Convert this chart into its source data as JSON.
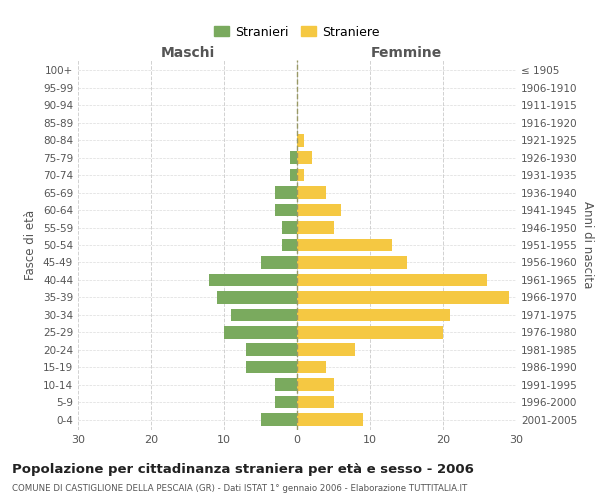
{
  "age_groups": [
    "0-4",
    "5-9",
    "10-14",
    "15-19",
    "20-24",
    "25-29",
    "30-34",
    "35-39",
    "40-44",
    "45-49",
    "50-54",
    "55-59",
    "60-64",
    "65-69",
    "70-74",
    "75-79",
    "80-84",
    "85-89",
    "90-94",
    "95-99",
    "100+"
  ],
  "birth_years": [
    "2001-2005",
    "1996-2000",
    "1991-1995",
    "1986-1990",
    "1981-1985",
    "1976-1980",
    "1971-1975",
    "1966-1970",
    "1961-1965",
    "1956-1960",
    "1951-1955",
    "1946-1950",
    "1941-1945",
    "1936-1940",
    "1931-1935",
    "1926-1930",
    "1921-1925",
    "1916-1920",
    "1911-1915",
    "1906-1910",
    "≤ 1905"
  ],
  "males": [
    5,
    3,
    3,
    7,
    7,
    10,
    9,
    11,
    12,
    5,
    2,
    2,
    3,
    3,
    1,
    1,
    0,
    0,
    0,
    0,
    0
  ],
  "females": [
    9,
    5,
    5,
    4,
    8,
    20,
    21,
    29,
    26,
    15,
    13,
    5,
    6,
    4,
    1,
    2,
    1,
    0,
    0,
    0,
    0
  ],
  "male_color": "#7aaa5e",
  "female_color": "#f5c842",
  "title": "Popolazione per cittadinanza straniera per età e sesso - 2006",
  "subtitle": "COMUNE DI CASTIGLIONE DELLA PESCAIA (GR) - Dati ISTAT 1° gennaio 2006 - Elaborazione TUTTITALIA.IT",
  "ylabel_left": "Fasce di età",
  "ylabel_right": "Anni di nascita",
  "xlabel_left": "Maschi",
  "xlabel_right": "Femmine",
  "legend_male": "Stranieri",
  "legend_female": "Straniere",
  "xlim": 30,
  "background_color": "#ffffff",
  "grid_color": "#cccccc"
}
